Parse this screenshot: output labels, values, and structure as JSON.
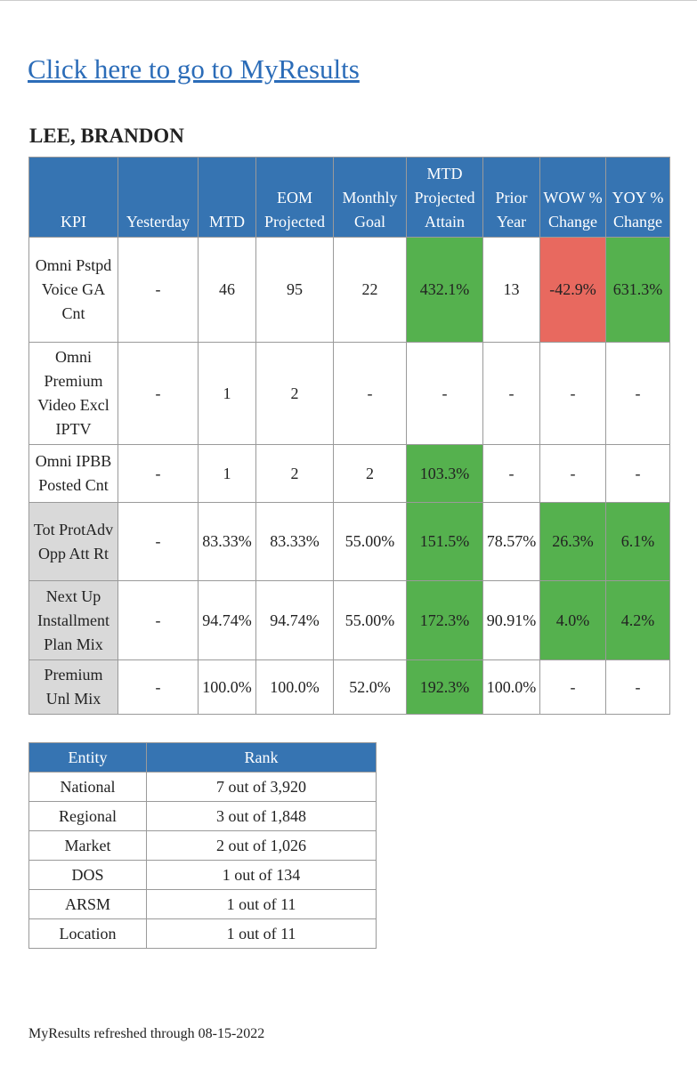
{
  "link": "Click here to go to MyResults",
  "name": "LEE, BRANDON",
  "kpi_table": {
    "header": [
      "KPI",
      "Yesterday",
      "MTD",
      "EOM Projected",
      "Monthly Goal",
      "MTD Projected Attain",
      "Prior Year",
      "WOW % Change",
      "YOY % Change"
    ],
    "rows": [
      [
        "Omni Pstpd Voice GA Cnt",
        "-",
        "46",
        "95",
        "22",
        "432.1%",
        "13",
        "-42.9%",
        "631.3%"
      ],
      [
        "Omni Premium Video Excl IPTV",
        "-",
        "1",
        "2",
        "-",
        "-",
        "-",
        "-",
        "-"
      ],
      [
        "Omni IPBB Posted Cnt",
        "-",
        "1",
        "2",
        "2",
        "103.3%",
        "-",
        "-",
        "-"
      ],
      [
        "Tot ProtAdv Opp Att Rt",
        "-",
        "83.33%",
        "83.33%",
        "55.00%",
        "151.5%",
        "78.57%",
        "26.3%",
        "6.1%"
      ],
      [
        "Next Up Installment Plan Mix",
        "-",
        "94.74%",
        "94.74%",
        "55.00%",
        "172.3%",
        "90.91%",
        "4.0%",
        "4.2%"
      ],
      [
        "Premium Unl Mix",
        "-",
        "100.0%",
        "100.0%",
        "52.0%",
        "192.3%",
        "100.0%",
        "-",
        "-"
      ]
    ]
  },
  "rank_table": {
    "header": [
      "Entity",
      "Rank"
    ],
    "rows": [
      [
        "National",
        "7 out of 3,920"
      ],
      [
        "Regional",
        "3 out of 1,848"
      ],
      [
        "Market",
        "2 out of 1,026"
      ],
      [
        "DOS",
        "1 out of 134"
      ],
      [
        "ARSM",
        "1 out of 11"
      ],
      [
        "Location",
        "1 out of 11"
      ]
    ]
  },
  "footer": "MyResults refreshed through 08-15-2022"
}
